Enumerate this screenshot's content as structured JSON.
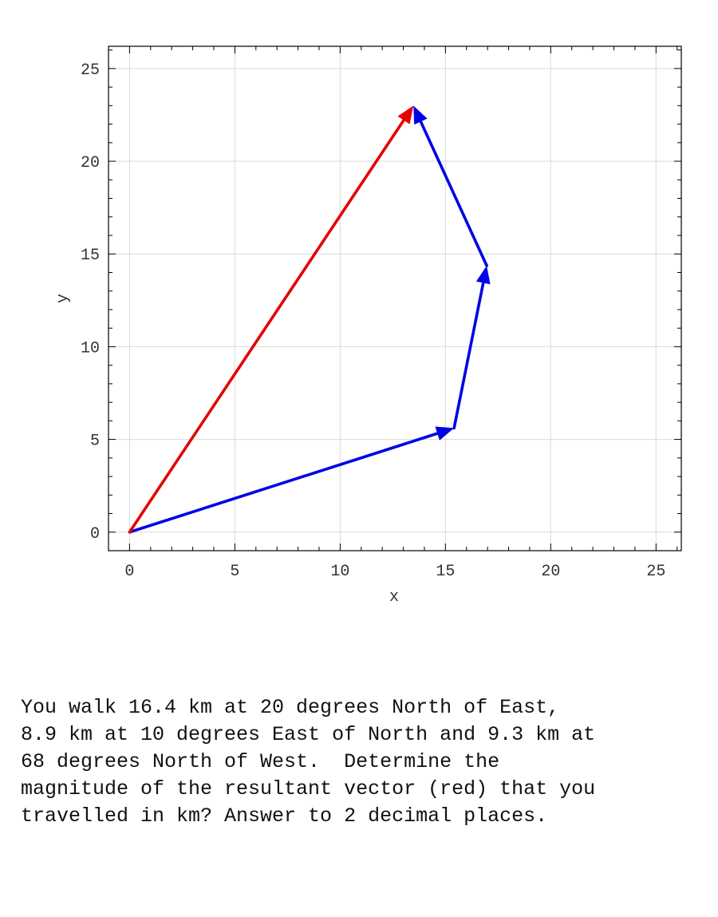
{
  "chart_data": {
    "type": "vector",
    "xlabel": "x",
    "ylabel": "y",
    "xlim": [
      -1,
      26.2
    ],
    "ylim": [
      -1,
      26.2
    ],
    "xticks": [
      0,
      5,
      10,
      15,
      20,
      25
    ],
    "yticks": [
      0,
      5,
      10,
      15,
      20,
      25
    ],
    "grid": true,
    "vectors": [
      {
        "from": [
          0,
          0
        ],
        "to": [
          15.41,
          5.61
        ],
        "color": "#0000e6"
      },
      {
        "from": [
          15.41,
          5.61
        ],
        "to": [
          16.96,
          14.37
        ],
        "color": "#0000e6"
      },
      {
        "from": [
          16.96,
          14.37
        ],
        "to": [
          13.48,
          23.0
        ],
        "color": "#0000e6"
      },
      {
        "from": [
          0,
          0
        ],
        "to": [
          13.48,
          23.0
        ],
        "color": "#e60000"
      }
    ]
  },
  "question": {
    "lines": [
      "You walk 16.4 km at 20 degrees North of East,",
      "8.9 km at 10 degrees East of North and 9.3 km at",
      "68 degrees North of West.  Determine the",
      "magnitude of the resultant vector (red) that you",
      "travelled in km? Answer to 2 decimal places."
    ]
  }
}
